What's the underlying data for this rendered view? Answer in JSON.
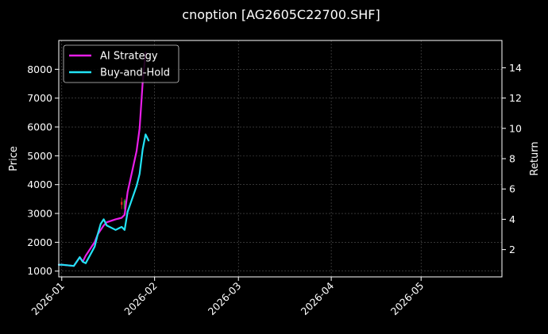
{
  "chart_data": {
    "type": "line",
    "title": "cnoption [AG2605C22700.SHF]",
    "ylabel": "Price",
    "ylabel_right": "Return",
    "xlabel": "",
    "x_range": [
      "2025-12-31",
      "2026-05-28"
    ],
    "ylim": [
      800,
      9000
    ],
    "ylim_right": [
      0.2,
      15.8
    ],
    "x_ticks": [
      "2026-01",
      "2026-02",
      "2026-03",
      "2026-04",
      "2026-05"
    ],
    "x_tick_dates": [
      "2026-01-01",
      "2026-02-01",
      "2026-03-01",
      "2026-04-01",
      "2026-05-01"
    ],
    "y_ticks": [
      1000,
      2000,
      3000,
      4000,
      5000,
      6000,
      7000,
      8000
    ],
    "y_ticks_right": [
      2,
      4,
      6,
      8,
      10,
      12,
      14
    ],
    "grid": true,
    "legend_position": "top-left",
    "background_color": "#000000",
    "series": [
      {
        "name": "AI Strategy",
        "axis": "right",
        "color": "#e81ee8",
        "points": [
          [
            "2025-12-31",
            1.0
          ],
          [
            "2026-01-01",
            1.0
          ],
          [
            "2026-01-05",
            0.92
          ],
          [
            "2026-01-07",
            1.5
          ],
          [
            "2026-01-08",
            1.2
          ],
          [
            "2026-01-09",
            1.6
          ],
          [
            "2026-01-12",
            2.5
          ],
          [
            "2026-01-13",
            3.0
          ],
          [
            "2026-01-14",
            3.3
          ],
          [
            "2026-01-15",
            3.6
          ],
          [
            "2026-01-16",
            3.8
          ],
          [
            "2026-01-19",
            4.0
          ],
          [
            "2026-01-20",
            4.05
          ],
          [
            "2026-01-21",
            4.1
          ],
          [
            "2026-01-22",
            4.3
          ],
          [
            "2026-01-23",
            5.8
          ],
          [
            "2026-01-26",
            8.5
          ],
          [
            "2026-01-27",
            10.0
          ],
          [
            "2026-01-28",
            13.0
          ],
          [
            "2026-01-29",
            15.0
          ]
        ]
      },
      {
        "name": "Buy-and-Hold",
        "axis": "right",
        "color": "#22e3f5",
        "points": [
          [
            "2025-12-31",
            1.0
          ],
          [
            "2026-01-01",
            1.0
          ],
          [
            "2026-01-05",
            0.92
          ],
          [
            "2026-01-07",
            1.5
          ],
          [
            "2026-01-08",
            1.2
          ],
          [
            "2026-01-09",
            1.1
          ],
          [
            "2026-01-12",
            2.2
          ],
          [
            "2026-01-13",
            3.0
          ],
          [
            "2026-01-14",
            3.7
          ],
          [
            "2026-01-15",
            4.0
          ],
          [
            "2026-01-16",
            3.6
          ],
          [
            "2026-01-19",
            3.3
          ],
          [
            "2026-01-20",
            3.4
          ],
          [
            "2026-01-21",
            3.5
          ],
          [
            "2026-01-22",
            3.3
          ],
          [
            "2026-01-23",
            4.5
          ],
          [
            "2026-01-26",
            6.2
          ],
          [
            "2026-01-27",
            7.0
          ],
          [
            "2026-01-28",
            8.6
          ],
          [
            "2026-01-29",
            9.6
          ],
          [
            "2026-01-30",
            9.2
          ]
        ]
      }
    ],
    "candlesticks": [
      {
        "date": "2026-01-21",
        "open": 3300,
        "close": 3400,
        "low": 3150,
        "high": 3550,
        "color": "#d42020"
      },
      {
        "date": "2026-01-22",
        "open": 3150,
        "close": 3450,
        "low": 3100,
        "high": 3500,
        "color": "#2ca02c"
      }
    ]
  }
}
